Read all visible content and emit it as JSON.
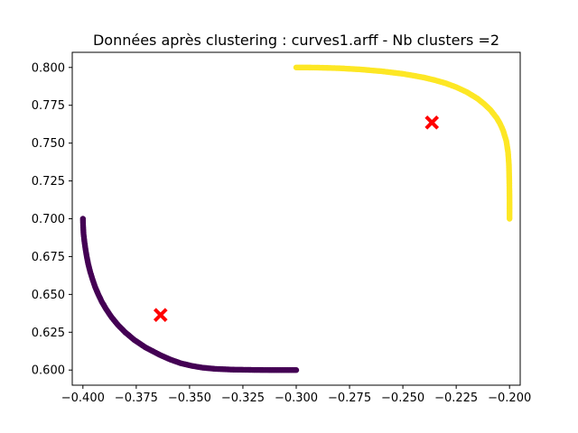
{
  "chart_data": {
    "type": "scatter",
    "title": "Données après clustering : curves1.arff - Nb clusters =2",
    "xlabel": "",
    "ylabel": "",
    "xlim": [
      -0.405,
      -0.195
    ],
    "ylim": [
      0.59,
      0.81
    ],
    "grid": false,
    "xticks": [
      -0.4,
      -0.375,
      -0.35,
      -0.325,
      -0.3,
      -0.275,
      -0.25,
      -0.225,
      -0.2
    ],
    "xtick_labels": [
      "−0.400",
      "−0.375",
      "−0.350",
      "−0.325",
      "−0.300",
      "−0.275",
      "−0.250",
      "−0.225",
      "−0.200"
    ],
    "yticks": [
      0.6,
      0.625,
      0.65,
      0.675,
      0.7,
      0.725,
      0.75,
      0.775,
      0.8
    ],
    "ytick_labels": [
      "0.600",
      "0.625",
      "0.650",
      "0.675",
      "0.700",
      "0.725",
      "0.750",
      "0.775",
      "0.800"
    ],
    "series": [
      {
        "color": "#440154",
        "points": [
          [
            -0.4,
            0.7
          ],
          [
            -0.3999,
            0.695
          ],
          [
            -0.3997,
            0.69
          ],
          [
            -0.3993,
            0.685
          ],
          [
            -0.3988,
            0.68
          ],
          [
            -0.3982,
            0.675
          ],
          [
            -0.3975,
            0.67
          ],
          [
            -0.3966,
            0.665
          ],
          [
            -0.3955,
            0.66
          ],
          [
            -0.3943,
            0.655
          ],
          [
            -0.3928,
            0.65
          ],
          [
            -0.3911,
            0.645
          ],
          [
            -0.389,
            0.64
          ],
          [
            -0.3866,
            0.635
          ],
          [
            -0.3837,
            0.63
          ],
          [
            -0.3802,
            0.625
          ],
          [
            -0.376,
            0.62
          ],
          [
            -0.3707,
            0.615
          ],
          [
            -0.3639,
            0.61
          ],
          [
            -0.3591,
            0.607
          ],
          [
            -0.3541,
            0.6045
          ],
          [
            -0.349,
            0.6028
          ],
          [
            -0.344,
            0.6016
          ],
          [
            -0.338,
            0.6008
          ],
          [
            -0.33,
            0.6003
          ],
          [
            -0.32,
            0.6001
          ],
          [
            -0.31,
            0.6
          ],
          [
            -0.3,
            0.6
          ]
        ]
      },
      {
        "color": "#fde725",
        "points": [
          [
            -0.3,
            0.8
          ],
          [
            -0.29,
            0.7999
          ],
          [
            -0.28,
            0.7995
          ],
          [
            -0.27,
            0.7987
          ],
          [
            -0.26,
            0.7975
          ],
          [
            -0.25,
            0.7958
          ],
          [
            -0.245,
            0.7946
          ],
          [
            -0.24,
            0.7933
          ],
          [
            -0.235,
            0.7916
          ],
          [
            -0.23,
            0.7896
          ],
          [
            -0.225,
            0.787
          ],
          [
            -0.22,
            0.7837
          ],
          [
            -0.215,
            0.7794
          ],
          [
            -0.212,
            0.776
          ],
          [
            -0.209,
            0.772
          ],
          [
            -0.206,
            0.7666
          ],
          [
            -0.2045,
            0.763
          ],
          [
            -0.203,
            0.7583
          ],
          [
            -0.2015,
            0.7513
          ],
          [
            -0.2007,
            0.744
          ],
          [
            -0.2003,
            0.736
          ],
          [
            -0.2001,
            0.725
          ],
          [
            -0.2,
            0.712
          ],
          [
            -0.2,
            0.7
          ]
        ]
      }
    ],
    "centroids": {
      "color": "#ff0000",
      "points": [
        [
          -0.3636,
          0.6364
        ],
        [
          -0.2364,
          0.7636
        ]
      ]
    }
  }
}
